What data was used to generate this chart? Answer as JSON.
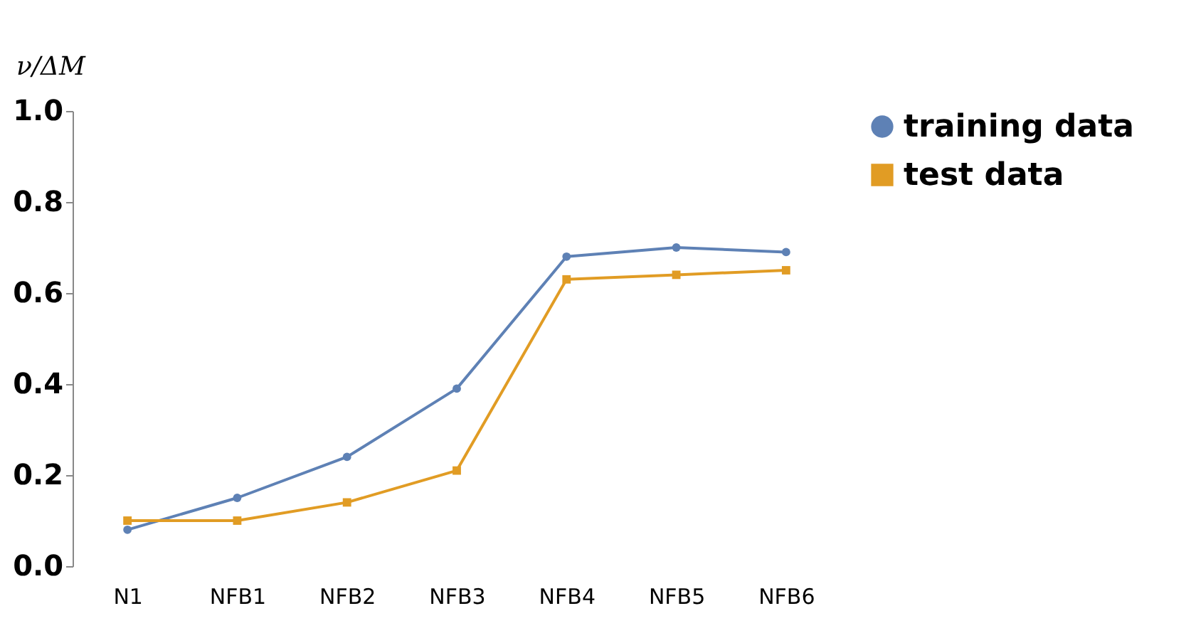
{
  "chart_data": {
    "type": "line",
    "ylabel": "ν/ΔM",
    "categories": [
      "N1",
      "NFB1",
      "NFB2",
      "NFB3",
      "NFB4",
      "NFB5",
      "NFB6"
    ],
    "series": [
      {
        "name": "training data",
        "color": "#5e81b5",
        "marker": "circle",
        "values": [
          0.08,
          0.15,
          0.24,
          0.39,
          0.68,
          0.7,
          0.69
        ]
      },
      {
        "name": "test data",
        "color": "#e19c24",
        "marker": "square",
        "values": [
          0.1,
          0.1,
          0.14,
          0.21,
          0.63,
          0.64,
          0.65
        ]
      }
    ],
    "ylim": [
      0,
      1
    ],
    "yticks": [
      {
        "value": 0,
        "label": "0.0"
      },
      0.2,
      0.4,
      0.6,
      0.8,
      {
        "value": 1,
        "label": "1.0"
      }
    ],
    "grid": false,
    "legend": "right"
  }
}
